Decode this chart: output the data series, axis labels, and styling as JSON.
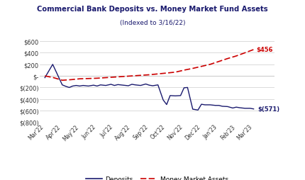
{
  "title": "Commercial Bank Deposits vs. Money Market Fund Assets",
  "subtitle": "(Indexed to 3/16/22)",
  "title_color": "#1a1a6e",
  "subtitle_color": "#1a1a6e",
  "background_color": "#ffffff",
  "ylim": [
    -800,
    700
  ],
  "yticks": [
    -800,
    -600,
    -400,
    -200,
    0,
    200,
    400,
    600
  ],
  "ytick_labels": [
    "$(800)",
    "$(600)",
    "$(400)",
    "$(200)",
    "$-",
    "$200",
    "$400",
    "$600"
  ],
  "x_labels": [
    "Mar'22",
    "Apr'22",
    "May'22",
    "Jun'22",
    "Jul'22",
    "Aug'22",
    "Sep'22",
    "Oct'22",
    "Nov'22",
    "Dec'22",
    "Jan'23",
    "Feb'23",
    "Mar'23"
  ],
  "deposits_color": "#1a1a6e",
  "mmf_color": "#cc0000",
  "grid_color": "#cccccc",
  "end_deposit_label": "$(571)",
  "end_mmf_label": "$456",
  "legend_deposit": "Deposits",
  "legend_mmf": "Money Market Assets",
  "deposits_x": [
    0,
    0.45,
    1.0,
    1.2,
    1.4,
    1.6,
    1.8,
    2.0,
    2.2,
    2.5,
    2.8,
    3.0,
    3.2,
    3.5,
    3.8,
    4.0,
    4.2,
    4.5,
    4.8,
    5.0,
    5.2,
    5.5,
    5.8,
    6.0,
    6.2,
    6.5,
    6.8,
    7.0,
    7.2,
    7.5,
    7.8,
    8.0,
    8.2,
    8.5,
    8.8,
    9.0,
    9.2,
    9.5,
    9.8,
    10.0,
    10.2,
    10.5,
    10.8,
    11.0,
    11.2,
    11.5,
    11.8,
    12.0
  ],
  "deposits_y": [
    -30,
    200,
    -155,
    -180,
    -200,
    -175,
    -165,
    -175,
    -165,
    -175,
    -160,
    -175,
    -155,
    -165,
    -145,
    -165,
    -150,
    -160,
    -170,
    -145,
    -155,
    -165,
    -140,
    -160,
    -170,
    -155,
    -415,
    -495,
    -340,
    -345,
    -340,
    -205,
    -200,
    -575,
    -590,
    -490,
    -500,
    -500,
    -510,
    -510,
    -525,
    -530,
    -555,
    -540,
    -550,
    -560,
    -560,
    -571
  ],
  "mmf_x": [
    0,
    0.5,
    1.0,
    1.5,
    2.0,
    2.5,
    3.0,
    3.5,
    4.0,
    4.5,
    5.0,
    5.5,
    6.0,
    6.5,
    7.0,
    7.5,
    8.0,
    8.5,
    9.0,
    9.5,
    10.0,
    10.5,
    11.0,
    11.5,
    12.0
  ],
  "mmf_y": [
    0,
    -30,
    -75,
    -65,
    -50,
    -45,
    -40,
    -30,
    -20,
    -10,
    0,
    10,
    20,
    35,
    50,
    65,
    100,
    130,
    165,
    200,
    250,
    300,
    345,
    400,
    456
  ]
}
